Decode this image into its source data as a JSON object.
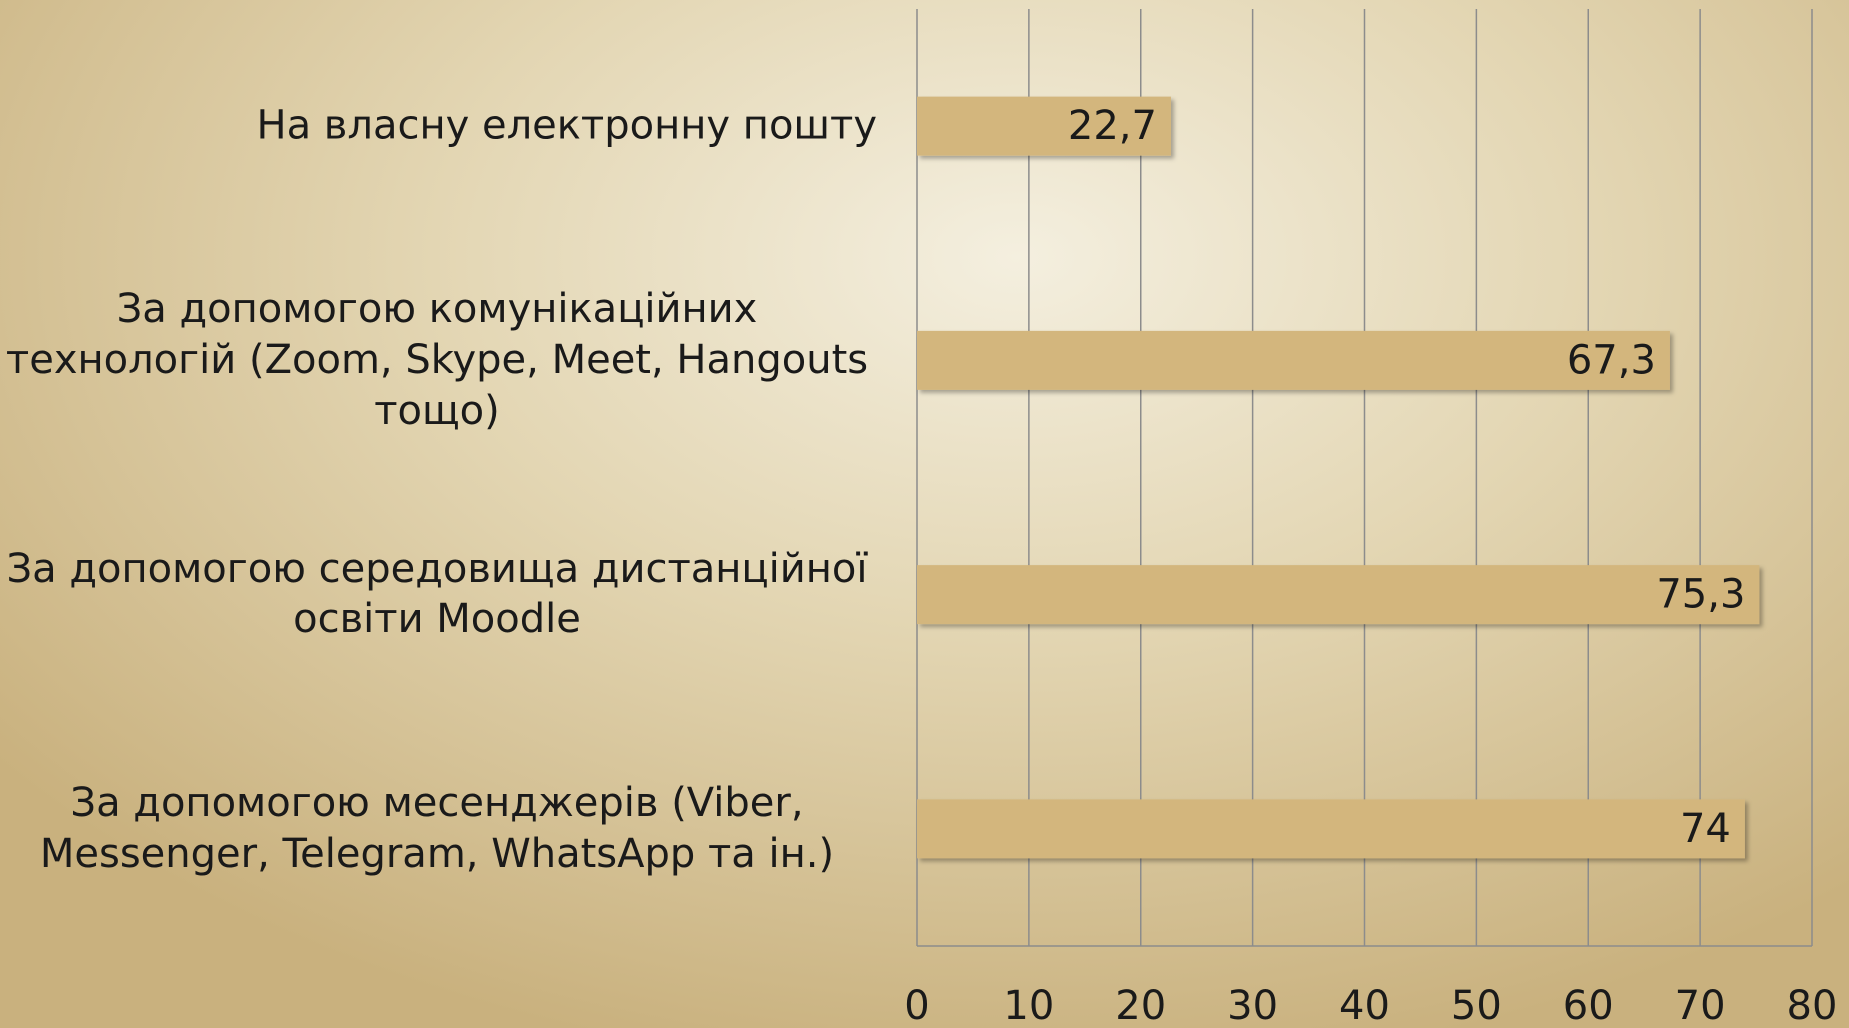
{
  "chart_data": {
    "type": "hbar",
    "categories": [
      "На власну електронну пошту",
      "За допомогою комунікаційних технологій (Zoom, Skype, Meet, Hangouts тощо)",
      "За допомогою середовища дистанційної освіти Moodle",
      "За допомогою месенджерів (Viber, Messenger, Telegram, WhatsApp та ін.)"
    ],
    "values": [
      22.7,
      67.3,
      75.3,
      74
    ],
    "value_labels": [
      "22,7",
      "67,3",
      "75,3",
      "74"
    ],
    "color": "#d3b67d",
    "xlim": [
      0,
      80
    ],
    "xticks": [
      0,
      10,
      20,
      30,
      40,
      50,
      60,
      70,
      80
    ],
    "grid": true
  }
}
